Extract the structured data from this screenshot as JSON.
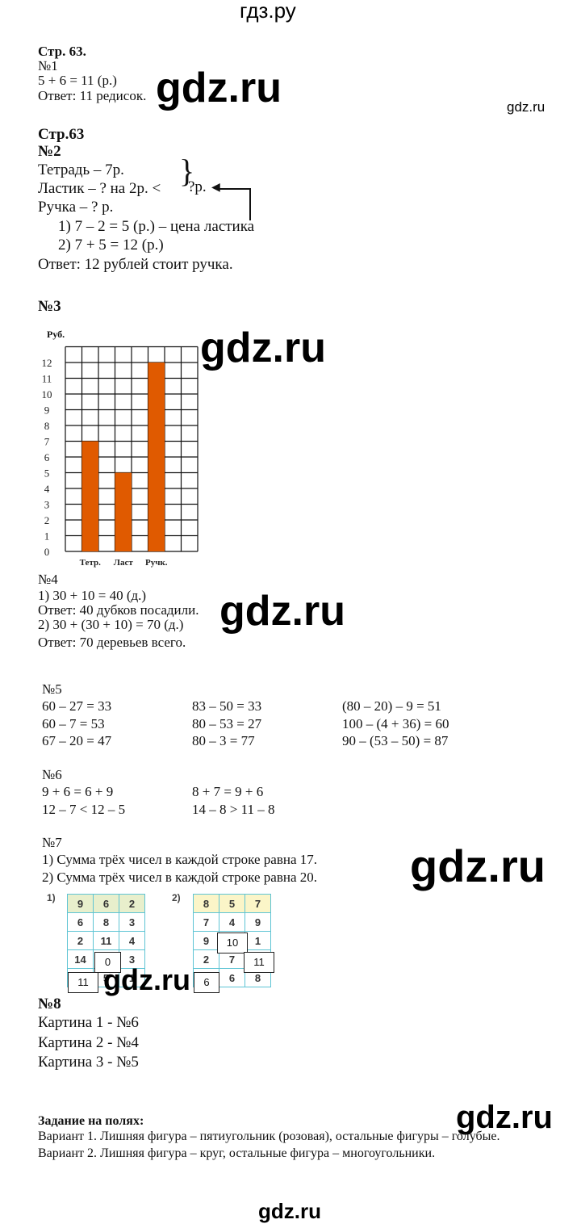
{
  "header": {
    "site": "гдз.ру"
  },
  "watermark": "gdz.ru",
  "s1": {
    "page": "Стр. 63.",
    "num": "№1",
    "lines": [
      "5 + 6 = 11 (р.)",
      "Ответ: 11 редисок."
    ]
  },
  "s2": {
    "page": "Стр.63",
    "num": "№2",
    "lines": [
      "Тетрадь – 7р.",
      "Ластик – ? на 2р. <",
      "Ручка – ? р.",
      "1) 7 – 2 = 5 (р.) – цена ластика",
      "2) 7 + 5 = 12 (р.)",
      "Ответ: 12 рублей стоит ручка."
    ],
    "brace_label": "?р."
  },
  "s3": {
    "num": "№3"
  },
  "chart_data": {
    "type": "bar",
    "ylabel": "Руб.",
    "categories": [
      "Тетр.",
      "Ласт",
      "Ручк."
    ],
    "values": [
      7,
      5,
      12
    ],
    "ylim": [
      0,
      13
    ],
    "yticks": [
      "0",
      "1",
      "2",
      "3",
      "4",
      "5",
      "6",
      "7",
      "8",
      "9",
      "10",
      "11",
      "12"
    ],
    "grid": true,
    "color": "#e05a00"
  },
  "s4": {
    "num": "№4",
    "lines": [
      "1) 30 + 10 = 40 (д.)",
      "Ответ: 40 дубков посадили.",
      "2) 30 + (30 + 10) = 70 (д.)",
      "Ответ: 70 деревьев всего."
    ]
  },
  "s5": {
    "num": "№5",
    "cols": [
      [
        "60 – 27 = 33",
        "60 – 7 = 53",
        "67 – 20 = 47"
      ],
      [
        "83 – 50 = 33",
        "80 – 53 = 27",
        "80 – 3 = 77"
      ],
      [
        "(80 – 20) – 9 = 51",
        "100 – (4 + 36) = 60",
        "90 – (53 – 50) = 87"
      ]
    ]
  },
  "s6": {
    "num": "№6",
    "cols": [
      [
        "9 + 6 = 6 + 9",
        "12 – 7 < 12 – 5"
      ],
      [
        "8 + 7 = 9 + 6",
        "14 – 8 > 11 – 8"
      ]
    ]
  },
  "s7": {
    "num": "№7",
    "lines": [
      "1) Сумма трёх чисел в каждой строке равна 17.",
      "2) Сумма трёх чисел в каждой строке равна 20."
    ],
    "t1": {
      "label": "1)",
      "rows": [
        [
          "9",
          "6",
          "2"
        ],
        [
          "6",
          "8",
          "3"
        ],
        [
          "2",
          "11",
          "4"
        ],
        [
          "14",
          "",
          "3"
        ],
        [
          "",
          "5",
          "1"
        ]
      ],
      "answers": [
        "0",
        "11"
      ]
    },
    "t2": {
      "label": "2)",
      "rows": [
        [
          "8",
          "5",
          "7"
        ],
        [
          "7",
          "4",
          "9"
        ],
        [
          "9",
          "",
          "1"
        ],
        [
          "2",
          "7",
          ""
        ],
        [
          "",
          "6",
          "8"
        ]
      ],
      "answers": [
        "10",
        "11",
        "6"
      ]
    }
  },
  "s8": {
    "num": "№8",
    "lines": [
      "Картина 1 - №6",
      "Картина 2 - №4",
      "Картина 3 - №5"
    ]
  },
  "margin": {
    "title": "Задание на полях:",
    "lines": [
      "Вариант 1. Лишняя фигура – пятиугольник (розовая), остальные фигуры – голубые.",
      "Вариант 2. Лишняя фигура – круг, остальные фигура – многоугольники."
    ]
  }
}
